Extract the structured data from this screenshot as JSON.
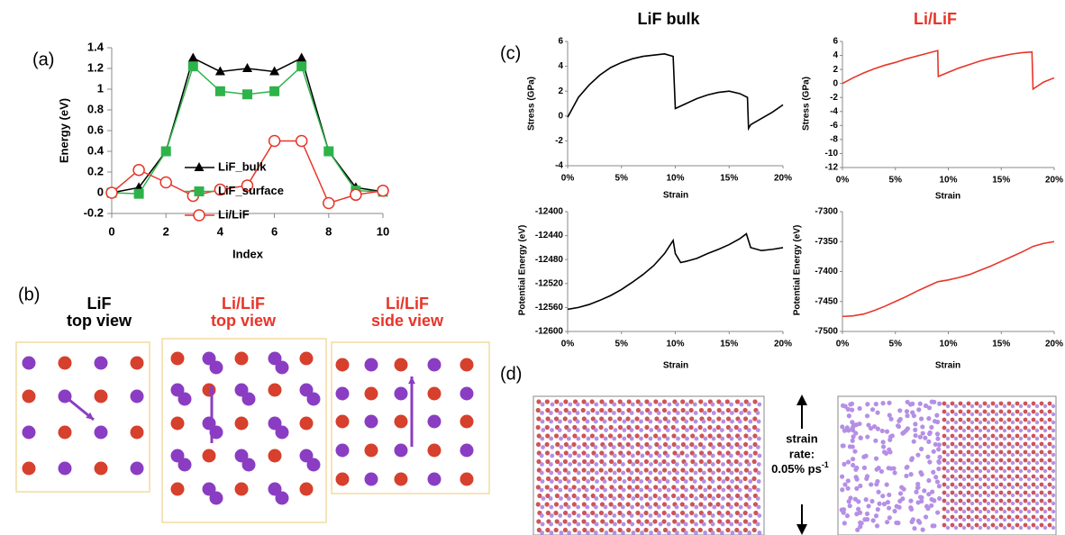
{
  "panel_labels": [
    "(a)",
    "(b)",
    "(c)",
    "(d)"
  ],
  "panel_b": {
    "titles": [
      [
        "LiF",
        "top view"
      ],
      [
        "Li/LiF",
        "top view"
      ],
      [
        "Li/LiF",
        "side view"
      ]
    ]
  },
  "panel_c": {
    "columns": [
      "LiF bulk",
      "Li/LiF"
    ]
  },
  "panel_d": {
    "strain_rate": [
      "strain",
      "rate:",
      "0.05% ps"
    ],
    "exponent": "-1"
  },
  "chart_data": [
    {
      "type": "line",
      "xlabel": "Index",
      "ylabel": "Energy (eV)",
      "legend": "center-left",
      "x": [
        0,
        1,
        2,
        3,
        4,
        5,
        6,
        7,
        8,
        9,
        10
      ],
      "xlim": [
        0,
        10
      ],
      "xticks": [
        0,
        2,
        4,
        6,
        8,
        10
      ],
      "ylim": [
        -0.2,
        1.4
      ],
      "yticks": [
        -0.2,
        0,
        0.2,
        0.4,
        0.6,
        0.8,
        1,
        1.2,
        1.4
      ],
      "series": [
        {
          "name": "LiF_bulk",
          "color": "#000000",
          "marker": "triangle",
          "values": [
            0,
            0.05,
            0.4,
            1.3,
            1.17,
            1.2,
            1.17,
            1.3,
            0.4,
            0.05,
            0.01
          ]
        },
        {
          "name": "LiF_surface",
          "color": "#2db34a",
          "marker": "square",
          "values": [
            0,
            -0.01,
            0.4,
            1.22,
            0.98,
            0.95,
            0.98,
            1.22,
            0.4,
            0.02,
            0.01
          ]
        },
        {
          "name": "Li/LiF",
          "color": "#e8352a",
          "marker": "circle",
          "values": [
            0,
            0.22,
            0.1,
            -0.03,
            0.03,
            0.07,
            0.5,
            0.5,
            -0.1,
            -0.02,
            0.02
          ]
        }
      ]
    },
    {
      "type": "line",
      "xlabel": "Strain",
      "ylabel": "Stress (GPa)",
      "color": "#000000",
      "x": [
        0,
        1,
        2,
        3,
        4,
        5,
        6,
        7,
        8,
        9,
        9.8,
        10,
        11,
        12,
        13,
        14,
        15,
        16,
        16.7,
        16.8,
        17,
        18,
        19,
        20
      ],
      "values": [
        -0.1,
        1.5,
        2.5,
        3.3,
        3.9,
        4.3,
        4.6,
        4.8,
        4.9,
        5.0,
        4.8,
        0.6,
        1.0,
        1.4,
        1.7,
        1.9,
        2.0,
        1.8,
        1.5,
        -1.0,
        -0.7,
        -0.2,
        0.3,
        0.9
      ],
      "xlim": [
        0,
        20
      ],
      "xticks": [
        {
          "value": 0,
          "label": "0%"
        },
        {
          "value": 5,
          "label": "5%"
        },
        {
          "value": 10,
          "label": "10%"
        },
        {
          "value": 15,
          "label": "15%"
        },
        {
          "value": 20,
          "label": "20%"
        }
      ],
      "ylim": [
        -4,
        6
      ],
      "yticks": [
        -4,
        -2,
        0,
        2,
        4,
        6
      ]
    },
    {
      "type": "line",
      "xlabel": "Strain",
      "ylabel": "Stress (GPa)",
      "color": "#e8352a",
      "x": [
        0,
        1,
        2,
        3,
        4,
        5,
        6,
        7,
        8,
        9,
        9.05,
        10,
        11,
        12,
        13,
        14,
        15,
        16,
        17,
        17.9,
        18,
        19,
        20
      ],
      "values": [
        0,
        0.8,
        1.5,
        2.1,
        2.6,
        3.0,
        3.5,
        3.9,
        4.3,
        4.7,
        1.0,
        1.6,
        2.2,
        2.7,
        3.2,
        3.6,
        3.9,
        4.2,
        4.4,
        4.5,
        -0.8,
        0.2,
        0.8
      ],
      "xlim": [
        0,
        20
      ],
      "xticks": [
        {
          "value": 0,
          "label": "0%"
        },
        {
          "value": 5,
          "label": "5%"
        },
        {
          "value": 10,
          "label": "10%"
        },
        {
          "value": 15,
          "label": "15%"
        },
        {
          "value": 20,
          "label": "20%"
        }
      ],
      "ylim": [
        -12,
        6
      ],
      "yticks": [
        -12,
        -10,
        -8,
        -6,
        -4,
        -2,
        0,
        2,
        4,
        6
      ]
    },
    {
      "type": "line",
      "xlabel": "Strain",
      "ylabel": "Potential Energy (eV)",
      "color": "#000000",
      "x": [
        0,
        1,
        2,
        3,
        4,
        5,
        6,
        7,
        8,
        9,
        9.8,
        10,
        10.5,
        11,
        12,
        13,
        14,
        15,
        16,
        16.6,
        17,
        18,
        19,
        20
      ],
      "values": [
        -12563,
        -12560,
        -12555,
        -12548,
        -12540,
        -12530,
        -12518,
        -12505,
        -12490,
        -12470,
        -12448,
        -12470,
        -12485,
        -12483,
        -12478,
        -12470,
        -12463,
        -12455,
        -12445,
        -12437,
        -12460,
        -12465,
        -12463,
        -12460
      ],
      "xlim": [
        0,
        20
      ],
      "xticks": [
        {
          "value": 0,
          "label": "0%"
        },
        {
          "value": 5,
          "label": "5%"
        },
        {
          "value": 10,
          "label": "10%"
        },
        {
          "value": 15,
          "label": "15%"
        },
        {
          "value": 20,
          "label": "20%"
        }
      ],
      "ylim": [
        -12600,
        -12400
      ],
      "yticks": [
        -12600,
        -12560,
        -12520,
        -12480,
        -12440,
        -12400
      ]
    },
    {
      "type": "line",
      "xlabel": "Strain",
      "ylabel": "Potential Energy (eV)",
      "color": "#e8352a",
      "x": [
        0,
        1,
        2,
        3,
        4,
        5,
        6,
        7,
        8,
        9,
        10,
        11,
        12,
        13,
        14,
        15,
        16,
        17,
        18,
        19,
        20
      ],
      "values": [
        -7475,
        -7474,
        -7471,
        -7465,
        -7458,
        -7450,
        -7442,
        -7433,
        -7425,
        -7417,
        -7414,
        -7410,
        -7405,
        -7398,
        -7391,
        -7383,
        -7375,
        -7367,
        -7358,
        -7353,
        -7350
      ],
      "xlim": [
        0,
        20
      ],
      "xticks": [
        {
          "value": 0,
          "label": "0%"
        },
        {
          "value": 5,
          "label": "5%"
        },
        {
          "value": 10,
          "label": "10%"
        },
        {
          "value": 15,
          "label": "15%"
        },
        {
          "value": 20,
          "label": "20%"
        }
      ],
      "ylim": [
        -7500,
        -7300
      ],
      "yticks": [
        -7500,
        -7450,
        -7400,
        -7350,
        -7300
      ]
    }
  ]
}
